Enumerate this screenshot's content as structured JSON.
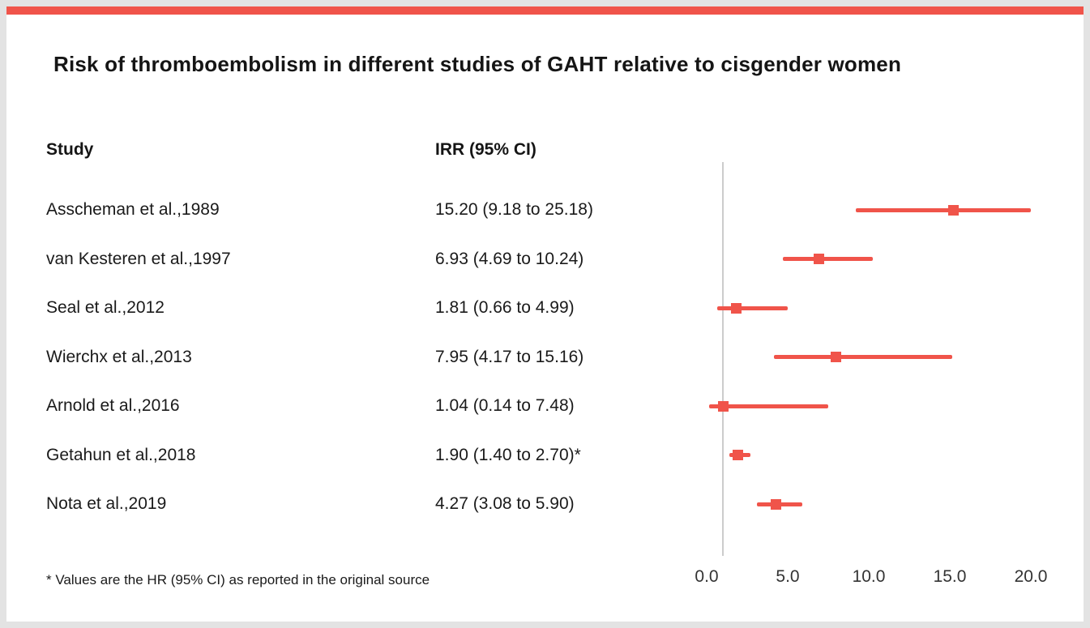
{
  "page": {
    "title": "Risk of thromboembolism in different studies of GAHT relative to cisgender women",
    "footnote": "* Values are the HR (95% CI) as reported in the original source"
  },
  "table": {
    "col_study": "Study",
    "col_irr": "IRR (95% CI)"
  },
  "colors": {
    "accent": "#F0544A",
    "ref_line": "#CCCCCC",
    "text": "#1A1A1A",
    "page_bg": "#E3E3E3",
    "card_bg": "#FFFFFF"
  },
  "chart_data": {
    "type": "forest",
    "title": "Risk of thromboembolism in different studies of GAHT relative to cisgender women",
    "xlabel": "",
    "ylabel": "",
    "xlim": [
      0,
      20
    ],
    "x_ticks": [
      0,
      5,
      10,
      15,
      20
    ],
    "x_tick_labels": [
      "0.0",
      "5.0",
      "10.0",
      "15.0",
      "20.0"
    ],
    "reference_line_x": 1,
    "grid": false,
    "legend": "none",
    "studies": [
      {
        "study": "Asscheman et al.,1989",
        "irr_label": "15.20 (9.18 to 25.18)",
        "point": 15.2,
        "low": 9.18,
        "high": 25.18
      },
      {
        "study": "van Kesteren et al.,1997",
        "irr_label": "6.93 (4.69 to 10.24)",
        "point": 6.93,
        "low": 4.69,
        "high": 10.24
      },
      {
        "study": "Seal et al.,2012",
        "irr_label": "1.81 (0.66 to 4.99)",
        "point": 1.81,
        "low": 0.66,
        "high": 4.99
      },
      {
        "study": "Wierchx et al.,2013",
        "irr_label": "7.95 (4.17 to 15.16)",
        "point": 7.95,
        "low": 4.17,
        "high": 15.16
      },
      {
        "study": "Arnold et al.,2016",
        "irr_label": "1.04 (0.14 to 7.48)",
        "point": 1.04,
        "low": 0.14,
        "high": 7.48
      },
      {
        "study": "Getahun et al.,2018",
        "irr_label": "1.90 (1.40 to 2.70)*",
        "point": 1.9,
        "low": 1.4,
        "high": 2.7
      },
      {
        "study": "Nota et al.,2019",
        "irr_label": "4.27 (3.08 to 5.90)",
        "point": 4.27,
        "low": 3.08,
        "high": 5.9
      }
    ]
  }
}
